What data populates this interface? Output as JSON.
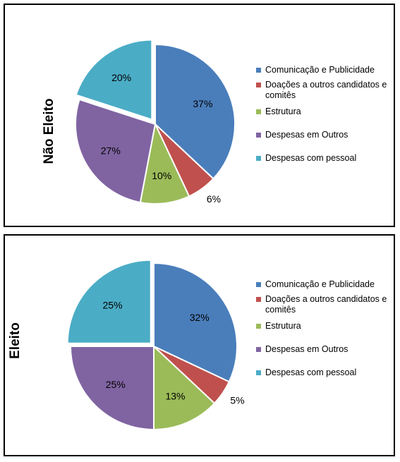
{
  "legend_labels": [
    "Comunicação e Publicidade",
    "Doações a outros candidatos e comitês",
    "Estrutura",
    "Despesas em Outros",
    "Despesas com pessoal"
  ],
  "colors": [
    "#4a7ebb",
    "#c0504d",
    "#9bbb59",
    "#8064a2",
    "#4bacc6"
  ],
  "chart_data": [
    {
      "type": "pie",
      "ylabel": "Não Eleito",
      "categories": [
        "Comunicação e Publicidade",
        "Doações a outros candidatos e comitês",
        "Estrutura",
        "Despesas em Outros",
        "Despesas com pessoal"
      ],
      "values": [
        37,
        6,
        10,
        27,
        20
      ],
      "labels": [
        "37%",
        "6%",
        "10%",
        "27%",
        "20%"
      ],
      "exploded_slice": "Despesas com pessoal",
      "legend": "right"
    },
    {
      "type": "pie",
      "ylabel": "Eleito",
      "categories": [
        "Comunicação e Publicidade",
        "Doações a outros candidatos e comitês",
        "Estrutura",
        "Despesas em Outros",
        "Despesas com pessoal"
      ],
      "values": [
        32,
        5,
        13,
        25,
        25
      ],
      "labels": [
        "32%",
        "5%",
        "13%",
        "25%",
        "25%"
      ],
      "exploded_slice": "Despesas com pessoal",
      "legend": "right"
    }
  ]
}
